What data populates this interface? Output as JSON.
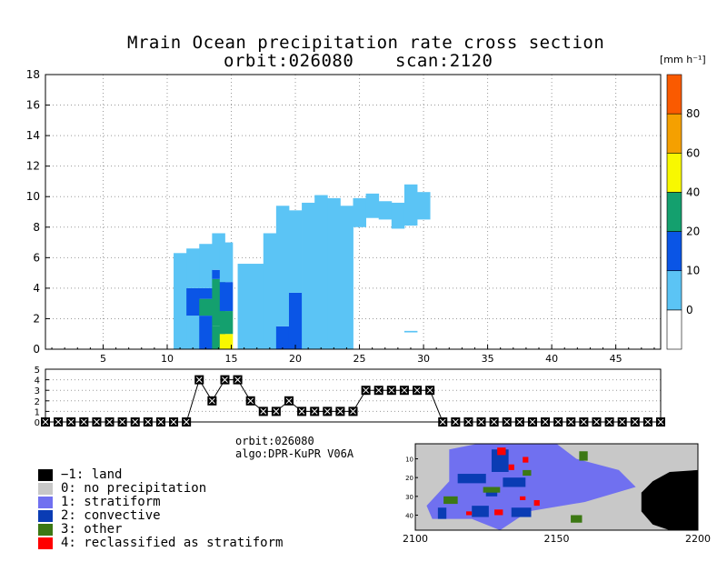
{
  "chart_data": [
    {
      "type": "heatmap",
      "title": "Mrain Ocean precipitation rate cross section",
      "subtitle_orbit": "orbit:026080",
      "subtitle_scan": "scan:2120",
      "xlim": [
        0.5,
        48.5
      ],
      "ylim": [
        0,
        18
      ],
      "x_ticks": [
        5,
        10,
        15,
        20,
        25,
        30,
        35,
        40,
        45
      ],
      "y_ticks": [
        0,
        2,
        4,
        6,
        8,
        10,
        12,
        14,
        16,
        18
      ],
      "grid": true,
      "colorbar": {
        "unit": "[mm h⁻¹]",
        "bounds": [
          -10,
          0,
          10,
          20,
          40,
          60,
          80,
          100
        ],
        "labels": [
          "0",
          "10",
          "20",
          "40",
          "60",
          "80"
        ],
        "colors": [
          "#ffffff",
          "#5bc4f5",
          "#0a55e6",
          "#14a06e",
          "#f8f800",
          "#f5a000",
          "#fa5a00"
        ]
      },
      "columns": [
        {
          "x": 11,
          "cells": [
            [
              0,
              6.3,
              1
            ]
          ]
        },
        {
          "x": 12,
          "cells": [
            [
              0,
              2.2,
              1
            ],
            [
              2.2,
              4.0,
              2
            ],
            [
              4.0,
              6.6,
              1
            ]
          ]
        },
        {
          "x": 13,
          "cells": [
            [
              0,
              2.2,
              2
            ],
            [
              2.2,
              3.3,
              3
            ],
            [
              3.3,
              4.0,
              2
            ],
            [
              4.0,
              6.9,
              1
            ]
          ]
        },
        {
          "x": 14,
          "cells": [
            [
              0,
              1.5,
              3
            ],
            [
              1.5,
              4.6,
              3
            ],
            [
              4.6,
              5.2,
              2
            ],
            [
              5.2,
              7.6,
              1
            ]
          ]
        },
        {
          "x": 14.6,
          "cells": [
            [
              0,
              1.0,
              4
            ],
            [
              1.0,
              2.5,
              3
            ],
            [
              2.5,
              4.4,
              2
            ],
            [
              4.4,
              7.0,
              1
            ]
          ]
        },
        {
          "x": 16,
          "cells": [
            [
              0,
              5.6,
              1
            ]
          ]
        },
        {
          "x": 17,
          "cells": [
            [
              0,
              5.6,
              1
            ]
          ]
        },
        {
          "x": 18,
          "cells": [
            [
              0,
              7.6,
              1
            ]
          ]
        },
        {
          "x": 19,
          "cells": [
            [
              0,
              1.5,
              2
            ],
            [
              1.5,
              9.4,
              1
            ]
          ]
        },
        {
          "x": 20,
          "cells": [
            [
              0,
              3.7,
              2
            ],
            [
              3.7,
              9.1,
              1
            ]
          ]
        },
        {
          "x": 21,
          "cells": [
            [
              0,
              9.6,
              1
            ]
          ]
        },
        {
          "x": 22,
          "cells": [
            [
              0,
              10.1,
              1
            ]
          ]
        },
        {
          "x": 23,
          "cells": [
            [
              0,
              9.9,
              1
            ]
          ]
        },
        {
          "x": 24,
          "cells": [
            [
              0,
              9.4,
              1
            ]
          ]
        },
        {
          "x": 25,
          "cells": [
            [
              8.0,
              9.9,
              1
            ]
          ]
        },
        {
          "x": 26,
          "cells": [
            [
              8.6,
              10.2,
              1
            ]
          ]
        },
        {
          "x": 27,
          "cells": [
            [
              8.5,
              9.7,
              1
            ]
          ]
        },
        {
          "x": 28,
          "cells": [
            [
              7.9,
              9.6,
              1
            ]
          ]
        },
        {
          "x": 29,
          "cells": [
            [
              8.1,
              10.8,
              1
            ]
          ]
        },
        {
          "x": 30,
          "cells": [
            [
              8.5,
              10.3,
              1
            ]
          ]
        },
        {
          "x": 29,
          "cells": [
            [
              1.1,
              1.2,
              1
            ]
          ]
        }
      ]
    },
    {
      "type": "line",
      "y_ticks": [
        0,
        1,
        2,
        3,
        4,
        5
      ],
      "ylim": [
        0,
        5
      ],
      "x": [
        1,
        2,
        3,
        4,
        5,
        6,
        7,
        8,
        9,
        10,
        11,
        12,
        13,
        14,
        15,
        16,
        17,
        18,
        19,
        20,
        21,
        22,
        23,
        24,
        25,
        26,
        27,
        28,
        29,
        30,
        31,
        32,
        33,
        34,
        35,
        36,
        37,
        38,
        39,
        40,
        41,
        42,
        43,
        44,
        45,
        46,
        47,
        48,
        49
      ],
      "values": [
        0,
        0,
        0,
        0,
        0,
        0,
        0,
        0,
        0,
        0,
        0,
        0,
        4,
        2,
        4,
        4,
        2,
        1,
        1,
        2,
        1,
        1,
        1,
        1,
        1,
        3,
        3,
        3,
        3,
        3,
        3,
        0,
        0,
        0,
        0,
        0,
        0,
        0,
        0,
        0,
        0,
        0,
        0,
        0,
        0,
        0,
        0,
        0,
        0
      ]
    },
    {
      "type": "heatmap",
      "x_ticks": [
        2100,
        2150,
        2200
      ],
      "y_ticks": [
        10,
        20,
        30,
        40
      ],
      "categories": [
        "-1: land",
        "0: no precipitation",
        "1: stratiform",
        "2: convective",
        "3: other",
        "4: reclassified as stratiform"
      ],
      "colors": [
        "#000000",
        "#c8c8c8",
        "#7070f0",
        "#0a3cb4",
        "#3c7814",
        "#ff0000"
      ]
    }
  ],
  "info": {
    "orbit": "orbit:026080",
    "algo": "algo:DPR-KuPR V06A"
  },
  "legend": [
    {
      "label": "−1: land",
      "color": "#000000"
    },
    {
      "label": "0: no precipitation",
      "color": "#c8c8c8"
    },
    {
      "label": "1: stratiform",
      "color": "#7070f0"
    },
    {
      "label": "2: convective",
      "color": "#0a3cb4"
    },
    {
      "label": "3: other",
      "color": "#3c7814"
    },
    {
      "label": "4: reclassified as stratiform",
      "color": "#ff0000"
    }
  ]
}
